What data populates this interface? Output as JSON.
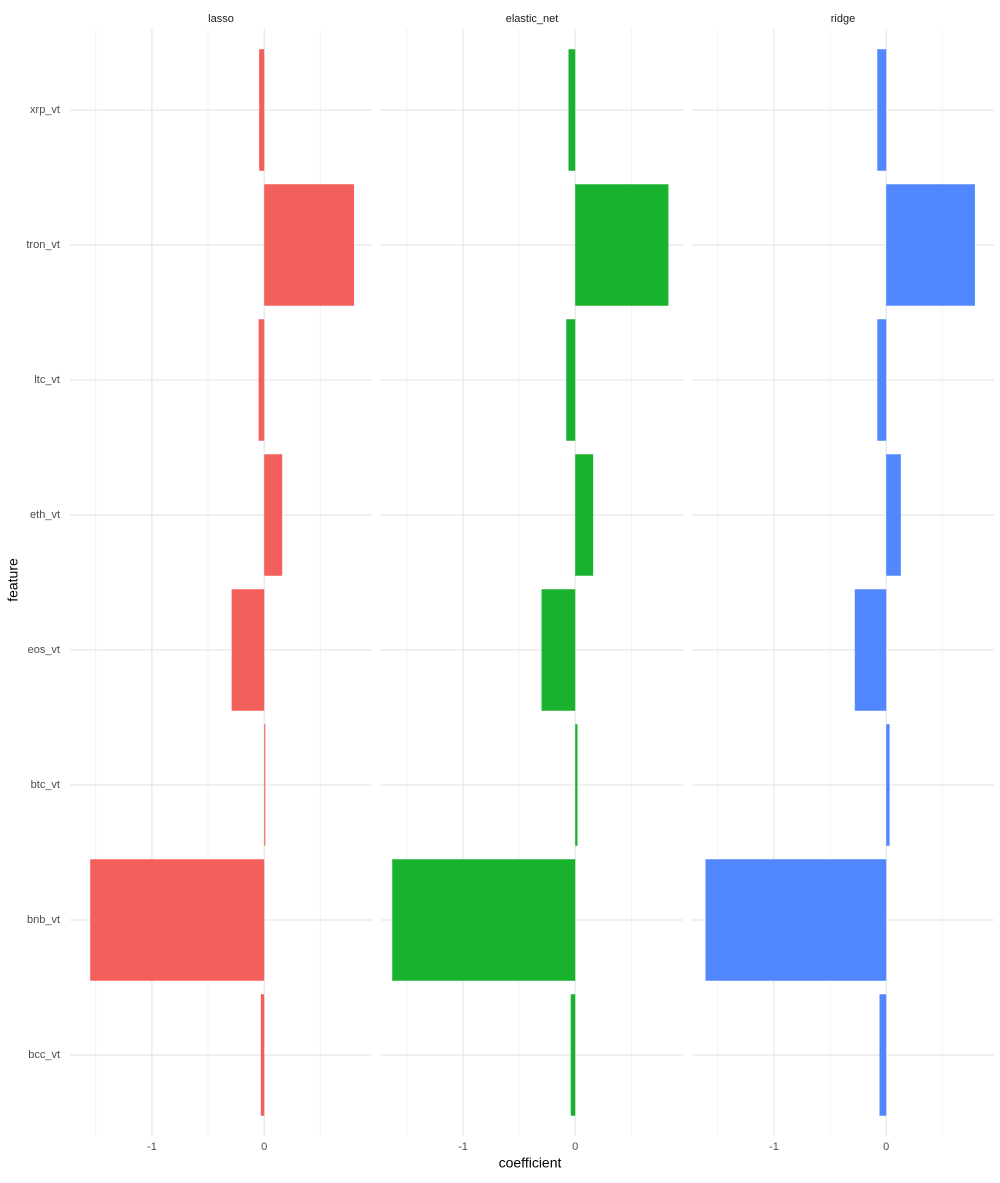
{
  "chart_data": {
    "type": "bar",
    "orientation": "horizontal",
    "faceted": true,
    "x_label": "coefficient",
    "y_label": "feature",
    "categories": [
      "bcc_vt",
      "bnb_vt",
      "btc_vt",
      "eos_vt",
      "eth_vt",
      "ltc_vt",
      "tron_vt",
      "xrp_vt"
    ],
    "series": [
      {
        "name": "lasso",
        "color": "#f35f5b",
        "values": [
          -0.03,
          -1.55,
          0.01,
          -0.29,
          0.16,
          -0.05,
          0.8,
          -0.045
        ]
      },
      {
        "name": "elastic_net",
        "color": "#19b22e",
        "values": [
          -0.04,
          -1.63,
          0.02,
          -0.3,
          0.16,
          -0.08,
          0.83,
          -0.06
        ]
      },
      {
        "name": "ridge",
        "color": "#5087ff",
        "values": [
          -0.06,
          -1.61,
          0.03,
          -0.28,
          0.13,
          -0.08,
          0.79,
          -0.08
        ]
      }
    ],
    "xlim": [
      -1.73,
      0.96
    ],
    "xticks": [
      -1,
      0
    ],
    "minor_xticks": [
      -1.5,
      -0.5,
      0.5
    ],
    "grid": true
  }
}
